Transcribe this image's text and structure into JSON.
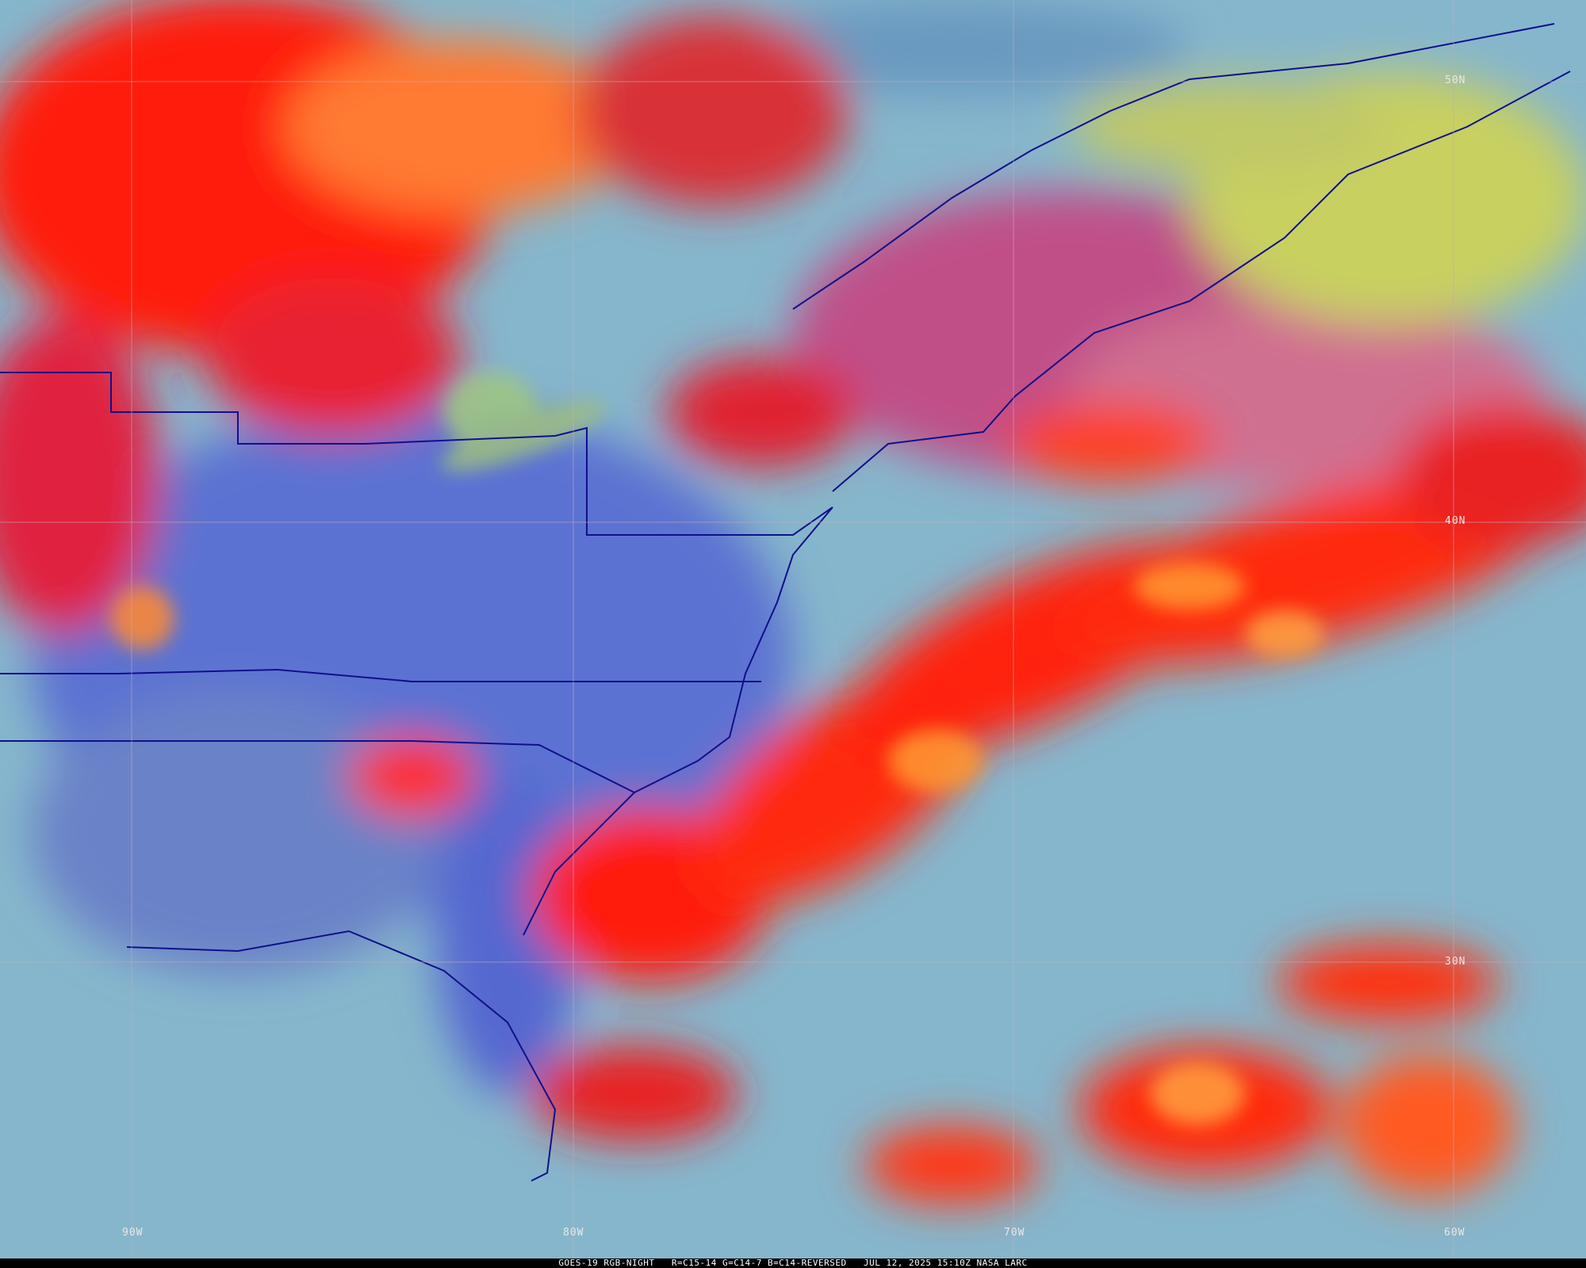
{
  "map": {
    "type": "satellite-imagery",
    "product": "GOES-19 RGB-NIGHT",
    "latitude_labels": [
      "50N",
      "40N",
      "30N"
    ],
    "longitude_labels": [
      "90W",
      "80W",
      "70W",
      "60W"
    ],
    "colors": {
      "cold_cloud": "#ff1a10",
      "warm_cloud": "#ff9a30",
      "clear_land": "#5a70d0",
      "clear_ocean": "#8ab8d0",
      "low_cloud": "#c8d060",
      "borders": "#10108a",
      "grid": "#c0a0b0"
    }
  },
  "caption": "GOES-19 RGB-NIGHT   R=C15-14 G=C14-7 B=C14-REVERSED   JUL 12, 2025 15:10Z NASA LARC"
}
